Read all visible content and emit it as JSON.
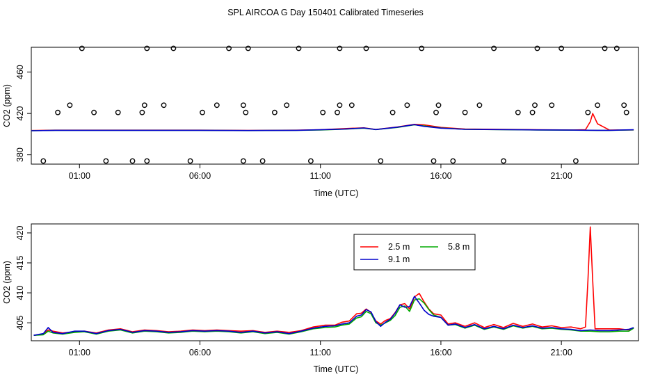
{
  "page_title": "SPL AIRCOA G  Day 150401  Calibrated Timeseries",
  "chart_data": [
    {
      "type": "line",
      "xlabel": "Time (UTC)",
      "ylabel": "CO2 (ppm)",
      "x_unit": "hours UTC",
      "xlim": [
        -1.0,
        24.2
      ],
      "ylim": [
        371,
        484
      ],
      "xticks": [
        1,
        6,
        11,
        16,
        21
      ],
      "xtick_labels": [
        "01:00",
        "06:00",
        "11:00",
        "16:00",
        "21:00"
      ],
      "yticks": [
        380,
        420,
        460
      ],
      "ytick_labels": [
        "380",
        "420",
        "460"
      ],
      "legend": "none",
      "series": [
        {
          "color": "#ff0000",
          "x": [
            -1.0,
            0,
            2,
            4,
            6,
            8,
            10,
            11,
            12,
            12.8,
            13.3,
            14.2,
            14.9,
            15.3,
            16,
            17,
            20,
            21.5,
            22,
            22.2,
            22.3,
            22.5,
            23,
            24.0
          ],
          "y": [
            403.5,
            403.8,
            403.8,
            403.8,
            403.8,
            403.6,
            403.8,
            404.3,
            405.4,
            406.1,
            404.5,
            407,
            409.5,
            409,
            406.5,
            405,
            404.3,
            404.0,
            404.3,
            412,
            420,
            410,
            403.9,
            404.1
          ]
        },
        {
          "color": "#00aa00",
          "x": [
            -1.0,
            0,
            2,
            4,
            6,
            8,
            10,
            11,
            12,
            12.8,
            13.3,
            14.2,
            14.9,
            15.3,
            16,
            17,
            20,
            21.5,
            22.5,
            23,
            24.0
          ],
          "y": [
            403.3,
            403.6,
            403.6,
            403.6,
            403.6,
            403.4,
            403.6,
            404.0,
            404.8,
            405.8,
            404.4,
            406.5,
            409,
            408,
            406,
            404.6,
            404.0,
            403.8,
            403.6,
            403.6,
            404.1
          ]
        },
        {
          "color": "#0000cc",
          "x": [
            -1.0,
            0,
            2,
            4,
            6,
            8,
            10,
            11,
            12,
            12.8,
            13.3,
            14.2,
            14.9,
            15.3,
            16,
            17,
            20,
            21.5,
            22.5,
            23,
            24.0
          ],
          "y": [
            403.3,
            403.7,
            403.7,
            403.7,
            403.7,
            403.5,
            403.7,
            404.2,
            404.9,
            406.0,
            404.4,
            406.8,
            409.2,
            407.5,
            405.8,
            404.6,
            404.1,
            403.9,
            403.7,
            403.7,
            404.2
          ]
        }
      ],
      "points": {
        "x": [
          -0.5,
          0.1,
          0.6,
          1.1,
          1.6,
          2.1,
          2.6,
          3.2,
          3.6,
          3.7,
          3.8,
          3.8,
          4.5,
          4.9,
          5.6,
          6.1,
          6.7,
          7.2,
          7.8,
          7.8,
          7.9,
          8.0,
          8.6,
          9.1,
          9.6,
          10.1,
          10.6,
          11.1,
          11.7,
          11.8,
          11.8,
          12.3,
          12.9,
          13.5,
          14.0,
          14.6,
          15.2,
          15.7,
          15.8,
          15.9,
          16.5,
          17.0,
          17.6,
          18.2,
          18.6,
          19.2,
          19.8,
          19.9,
          20.0,
          20.6,
          21.0,
          21.6,
          22.1,
          22.5,
          22.8,
          23.3,
          23.6,
          23.7
        ],
        "y": [
          374,
          421,
          428,
          483,
          421,
          374,
          421,
          374,
          421,
          428,
          483,
          374,
          428,
          483,
          374,
          421,
          428,
          483,
          374,
          428,
          421,
          483,
          374,
          421,
          428,
          483,
          374,
          421,
          421,
          428,
          483,
          428,
          483,
          374,
          421,
          428,
          483,
          374,
          421,
          428,
          374,
          421,
          428,
          483,
          374,
          421,
          421,
          428,
          483,
          428,
          483,
          374,
          421,
          428,
          483,
          483,
          428,
          421
        ]
      }
    },
    {
      "type": "line",
      "xlabel": "Time (UTC)",
      "ylabel": "CO2 (ppm)",
      "x_unit": "hours UTC",
      "xlim": [
        -1.0,
        24.2
      ],
      "ylim": [
        402.0,
        421.5
      ],
      "xticks": [
        1,
        6,
        11,
        16,
        21
      ],
      "xtick_labels": [
        "01:00",
        "06:00",
        "11:00",
        "16:00",
        "21:00"
      ],
      "yticks": [
        405,
        410,
        415,
        420
      ],
      "ytick_labels": [
        "405",
        "410",
        "415",
        "420"
      ],
      "legend": "top-center",
      "legend_layout": [
        [
          0,
          2
        ],
        [
          1
        ]
      ],
      "series": [
        {
          "name": "2.5 m",
          "color": "#ff0000",
          "x": [
            -0.9,
            -0.5,
            -0.3,
            -0.1,
            0.3,
            0.8,
            1.2,
            1.7,
            2.2,
            2.7,
            3.2,
            3.7,
            4.2,
            4.7,
            5.2,
            5.7,
            6.2,
            6.7,
            7.2,
            7.7,
            8.2,
            8.7,
            9.2,
            9.7,
            10.2,
            10.7,
            11.2,
            11.6,
            11.9,
            12.2,
            12.5,
            12.7,
            12.9,
            13.1,
            13.3,
            13.5,
            13.7,
            13.9,
            14.1,
            14.3,
            14.5,
            14.7,
            14.9,
            15.1,
            15.3,
            15.5,
            15.7,
            16.0,
            16.3,
            16.6,
            17.0,
            17.4,
            17.8,
            18.2,
            18.6,
            19.0,
            19.4,
            19.8,
            20.2,
            20.6,
            21.0,
            21.4,
            21.8,
            22.0,
            22.1,
            22.2,
            22.3,
            22.4,
            22.6,
            23.0,
            23.4,
            23.8,
            24.0
          ],
          "y": [
            402.9,
            403.1,
            403.8,
            403.6,
            403.3,
            403.5,
            403.6,
            403.3,
            403.8,
            404.0,
            403.5,
            403.8,
            403.7,
            403.5,
            403.6,
            403.8,
            403.7,
            403.8,
            403.7,
            403.6,
            403.7,
            403.4,
            403.6,
            403.4,
            403.7,
            404.3,
            404.6,
            404.6,
            405.1,
            405.3,
            406.5,
            406.6,
            407.3,
            406.7,
            405.3,
            404.8,
            405.4,
            405.7,
            406.7,
            408.0,
            408.2,
            407.3,
            409.3,
            409.9,
            408.5,
            407.3,
            406.5,
            406.3,
            404.8,
            405.0,
            404.4,
            405.0,
            404.2,
            404.7,
            404.2,
            404.9,
            404.4,
            404.8,
            404.3,
            404.5,
            404.2,
            404.3,
            404.0,
            404.3,
            412.0,
            421.0,
            412.0,
            404.0,
            404.0,
            404.0,
            404.0,
            403.8,
            404.1
          ]
        },
        {
          "name": "5.8 m",
          "color": "#00aa00",
          "x": [
            -0.9,
            -0.5,
            -0.3,
            -0.1,
            0.3,
            0.8,
            1.2,
            1.7,
            2.2,
            2.7,
            3.2,
            3.7,
            4.2,
            4.7,
            5.2,
            5.7,
            6.2,
            6.7,
            7.2,
            7.7,
            8.2,
            8.7,
            9.2,
            9.7,
            10.2,
            10.7,
            11.2,
            11.6,
            11.9,
            12.2,
            12.5,
            12.7,
            12.9,
            13.1,
            13.3,
            13.5,
            13.7,
            13.9,
            14.1,
            14.3,
            14.5,
            14.7,
            14.9,
            15.1,
            15.3,
            15.5,
            15.7,
            16.0,
            16.3,
            16.6,
            17.0,
            17.4,
            17.8,
            18.2,
            18.6,
            19.0,
            19.4,
            19.8,
            20.2,
            20.6,
            21.0,
            21.4,
            21.8,
            22.2,
            22.6,
            23.0,
            23.4,
            23.8,
            24.0
          ],
          "y": [
            402.9,
            403.0,
            403.6,
            403.3,
            403.1,
            403.4,
            403.5,
            403.1,
            403.6,
            403.8,
            403.3,
            403.6,
            403.5,
            403.3,
            403.4,
            403.6,
            403.5,
            403.6,
            403.5,
            403.3,
            403.5,
            403.2,
            403.4,
            403.1,
            403.5,
            404.0,
            404.2,
            404.3,
            404.6,
            404.8,
            405.8,
            406.0,
            406.9,
            406.5,
            405.0,
            404.6,
            405.0,
            405.4,
            406.2,
            407.6,
            407.8,
            406.9,
            408.8,
            409.0,
            408.3,
            407.2,
            406.3,
            405.9,
            404.6,
            404.7,
            404.1,
            404.6,
            403.9,
            404.3,
            403.9,
            404.5,
            404.1,
            404.4,
            404.0,
            404.1,
            403.9,
            403.8,
            403.6,
            403.6,
            403.5,
            403.5,
            403.6,
            403.6,
            404.1
          ]
        },
        {
          "name": "9.1 m",
          "color": "#0000cc",
          "x": [
            -0.9,
            -0.5,
            -0.3,
            -0.1,
            0.3,
            0.8,
            1.2,
            1.7,
            2.2,
            2.7,
            3.2,
            3.7,
            4.2,
            4.7,
            5.2,
            5.7,
            6.2,
            6.7,
            7.2,
            7.7,
            8.2,
            8.7,
            9.2,
            9.7,
            10.2,
            10.7,
            11.2,
            11.6,
            11.9,
            12.2,
            12.5,
            12.7,
            12.9,
            13.1,
            13.3,
            13.5,
            13.7,
            13.9,
            14.1,
            14.3,
            14.5,
            14.7,
            14.9,
            15.1,
            15.3,
            15.5,
            15.7,
            16.0,
            16.3,
            16.6,
            17.0,
            17.4,
            17.8,
            18.2,
            18.6,
            19.0,
            19.4,
            19.8,
            20.2,
            20.6,
            21.0,
            21.4,
            21.8,
            22.2,
            22.6,
            23.0,
            23.4,
            23.8,
            24.0
          ],
          "y": [
            402.9,
            403.2,
            404.2,
            403.4,
            403.2,
            403.6,
            403.6,
            403.2,
            403.7,
            403.9,
            403.4,
            403.7,
            403.6,
            403.4,
            403.5,
            403.7,
            403.6,
            403.7,
            403.6,
            403.4,
            403.6,
            403.3,
            403.5,
            403.2,
            403.6,
            404.1,
            404.4,
            404.5,
            404.8,
            405.0,
            406.1,
            406.3,
            407.2,
            406.8,
            405.2,
            404.4,
            405.1,
            405.6,
            406.6,
            408.0,
            407.6,
            407.7,
            409.4,
            408.3,
            407.1,
            406.4,
            406.1,
            405.9,
            404.6,
            404.8,
            404.2,
            404.7,
            404.0,
            404.4,
            404.0,
            404.6,
            404.2,
            404.5,
            404.1,
            404.2,
            404.0,
            403.9,
            403.7,
            403.8,
            403.7,
            403.7,
            403.8,
            403.9,
            404.2
          ]
        }
      ]
    }
  ]
}
